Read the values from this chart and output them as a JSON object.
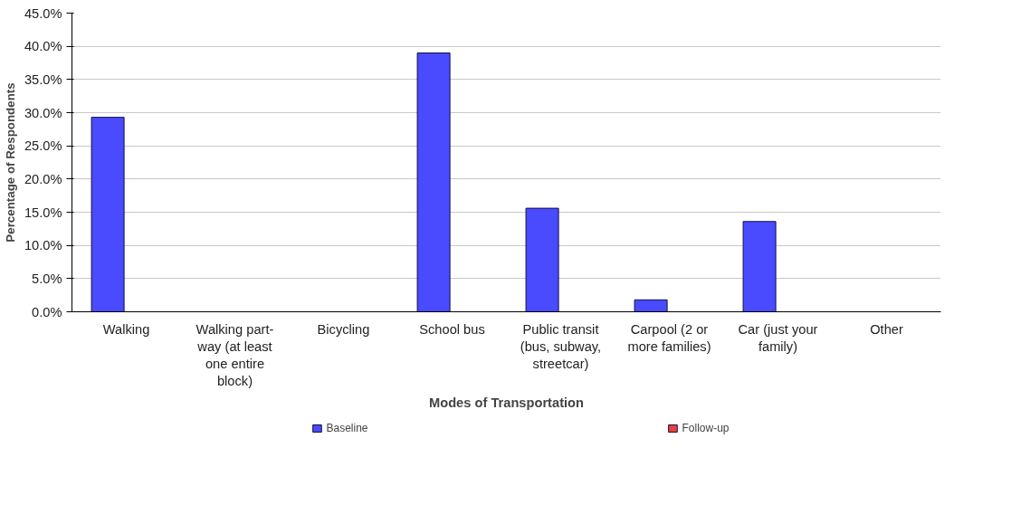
{
  "chart_data": {
    "type": "bar",
    "xlabel": "Modes of Transportation",
    "ylabel": "Percentage of Respondents",
    "categories": [
      "Walking",
      "Walking part-way (at least one entire block)",
      "Bicycling",
      "School bus",
      "Public transit (bus, subway, streetcar)",
      "Carpool (2 or more families)",
      "Car (just your family)",
      "Other"
    ],
    "series": [
      {
        "name": "Baseline",
        "color": "#4a4aff",
        "values": [
          29.3,
          0,
          0,
          39.0,
          15.6,
          1.8,
          13.6,
          0
        ]
      },
      {
        "name": "Follow-up",
        "color": "#e8403c",
        "values": [
          null,
          null,
          null,
          null,
          null,
          null,
          null,
          null
        ]
      }
    ],
    "ylim": [
      0,
      45
    ],
    "yticks": [
      {
        "value": 0,
        "label": "0.0%"
      },
      {
        "value": 5,
        "label": "5.0%"
      },
      {
        "value": 10,
        "label": "10.0%"
      },
      {
        "value": 15,
        "label": "15.0%"
      },
      {
        "value": 20,
        "label": "20.0%"
      },
      {
        "value": 25,
        "label": "25.0%"
      },
      {
        "value": 30,
        "label": "30.0%"
      },
      {
        "value": 35,
        "label": "35.0%"
      },
      {
        "value": 40,
        "label": "40.0%"
      },
      {
        "value": 45,
        "label": "45.0%"
      }
    ],
    "grid": "y",
    "legend": "bottom"
  }
}
